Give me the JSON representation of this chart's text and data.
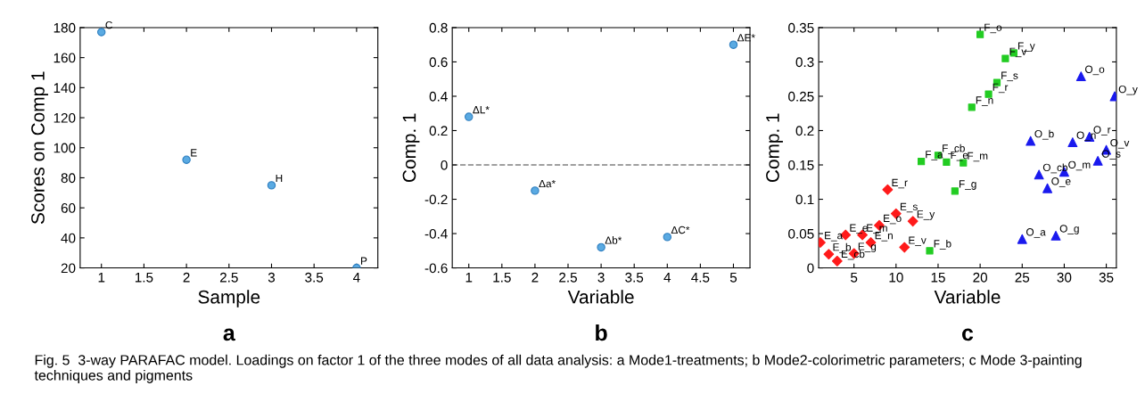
{
  "chart_data": [
    {
      "type": "scatter",
      "title": "a",
      "xlabel": "Sample",
      "ylabel": "Scores on Comp 1",
      "xlim": [
        0.75,
        4.25
      ],
      "xticks": [
        1,
        1.5,
        2,
        2.5,
        3,
        3.5,
        4
      ],
      "ylim": [
        20,
        180
      ],
      "yticks": [
        20,
        40,
        60,
        80,
        100,
        120,
        140,
        160,
        180
      ],
      "grid": false,
      "marker": "circle",
      "series": [
        {
          "color": "#5aaae2",
          "x": [
            1,
            2,
            3,
            4
          ],
          "values": [
            177,
            92,
            75,
            20
          ]
        }
      ],
      "annotations": [
        {
          "text": "C",
          "x": 1,
          "y": 177
        },
        {
          "text": "E",
          "x": 2,
          "y": 92
        },
        {
          "text": "H",
          "x": 3,
          "y": 75
        },
        {
          "text": "P",
          "x": 4,
          "y": 20
        },
        "Fig. 5  3-way PARAFAC model. Loadings on factor 1 of the three modes of all data analysis: a Mode1-treatments; b Mode2-colorimetric parameters; c Mode 3-painting techniques and pigments"
      ]
    },
    {
      "type": "scatter",
      "title": "b",
      "xlabel": "Variable",
      "ylabel": "Comp. 1",
      "xlim": [
        0.75,
        5.25
      ],
      "xticks": [
        1,
        1.5,
        2,
        2.5,
        3,
        3.5,
        4,
        4.5,
        5
      ],
      "ylim": [
        -0.6,
        0.8
      ],
      "yticks": [
        -0.6,
        -0.4,
        -0.2,
        0,
        0.2,
        0.4,
        0.6,
        0.8
      ],
      "grid": false,
      "marker": "circle",
      "series": [
        {
          "color": "#5aaae2",
          "x": [
            1,
            2,
            3,
            4,
            5
          ],
          "values": [
            0.28,
            -0.15,
            -0.48,
            -0.42,
            0.7
          ]
        }
      ],
      "ref_lines": [
        {
          "axis": "y",
          "value": 0,
          "color": "#808080",
          "line_style": "dashed"
        }
      ],
      "annotations": [
        {
          "text": "ΔL*",
          "x": 1,
          "y": 0.28
        },
        {
          "text": "Δa*",
          "x": 2,
          "y": -0.15
        },
        {
          "text": "Δb*",
          "x": 3,
          "y": -0.48
        },
        {
          "text": "ΔC*",
          "x": 4,
          "y": -0.42
        },
        {
          "text": "ΔE*",
          "x": 5,
          "y": 0.7
        }
      ]
    },
    {
      "type": "scatter",
      "title": "c",
      "xlabel": "Variable",
      "ylabel": "Comp. 1",
      "xlim": [
        0.8,
        36.2
      ],
      "xticks": [
        5,
        10,
        15,
        20,
        25,
        30,
        35
      ],
      "ylim": [
        0,
        0.35
      ],
      "yticks": [
        0,
        0.05,
        0.1,
        0.15,
        0.2,
        0.25,
        0.3,
        0.35
      ],
      "grid": false,
      "series": [
        {
          "color": "#ff1a1a",
          "marker": "diamond",
          "x": [
            1,
            2,
            3,
            4,
            5,
            6,
            7,
            8,
            9,
            10,
            11,
            12
          ],
          "values": [
            0.037,
            0.02,
            0.01,
            0.048,
            0.021,
            0.048,
            0.037,
            0.062,
            0.114,
            0.079,
            0.03,
            0.068
          ]
        },
        {
          "color": "#22cc22",
          "marker": "square",
          "x": [
            13,
            14,
            15,
            16,
            17,
            18,
            19,
            20,
            21,
            22,
            23,
            24
          ],
          "values": [
            0.155,
            0.025,
            0.164,
            0.154,
            0.112,
            0.153,
            0.234,
            0.34,
            0.253,
            0.27,
            0.305,
            0.313
          ]
        },
        {
          "color": "#1a1aee",
          "marker": "triangle",
          "x": [
            25,
            26,
            27,
            28,
            29,
            30,
            31,
            32,
            33,
            34,
            35,
            36
          ],
          "values": [
            0.042,
            0.185,
            0.136,
            0.116,
            0.047,
            0.14,
            0.183,
            0.279,
            0.191,
            0.156,
            0.172,
            0.25
          ]
        }
      ],
      "annotations": [
        {
          "text": "E_a",
          "x": 1,
          "y": 0.037
        },
        {
          "text": "E_b",
          "x": 2,
          "y": 0.02
        },
        {
          "text": "E_cb",
          "x": 3,
          "y": 0.01
        },
        {
          "text": "E_e",
          "x": 4,
          "y": 0.048
        },
        {
          "text": "E_g",
          "x": 5,
          "y": 0.021
        },
        {
          "text": "E_m",
          "x": 6,
          "y": 0.048
        },
        {
          "text": "E_n",
          "x": 7,
          "y": 0.037
        },
        {
          "text": "E_o",
          "x": 8,
          "y": 0.062
        },
        {
          "text": "E_r",
          "x": 9,
          "y": 0.114
        },
        {
          "text": "E_s",
          "x": 10,
          "y": 0.079
        },
        {
          "text": "E_v",
          "x": 11,
          "y": 0.03
        },
        {
          "text": "E_y",
          "x": 12,
          "y": 0.068
        },
        {
          "text": "F_a",
          "x": 13,
          "y": 0.155
        },
        {
          "text": "F_b",
          "x": 14,
          "y": 0.025
        },
        {
          "text": "F_cb",
          "x": 15,
          "y": 0.164
        },
        {
          "text": "F_e",
          "x": 16,
          "y": 0.154
        },
        {
          "text": "F_g",
          "x": 17,
          "y": 0.112
        },
        {
          "text": "F_m",
          "x": 18,
          "y": 0.153
        },
        {
          "text": "F_n",
          "x": 19,
          "y": 0.234
        },
        {
          "text": "F_o",
          "x": 20,
          "y": 0.34
        },
        {
          "text": "F_r",
          "x": 21,
          "y": 0.253
        },
        {
          "text": "F_s",
          "x": 22,
          "y": 0.27
        },
        {
          "text": "F_v",
          "x": 23,
          "y": 0.305
        },
        {
          "text": "F_y",
          "x": 24,
          "y": 0.313
        },
        {
          "text": "O_a",
          "x": 25,
          "y": 0.042
        },
        {
          "text": "O_b",
          "x": 26,
          "y": 0.185
        },
        {
          "text": "O_cb",
          "x": 27,
          "y": 0.136
        },
        {
          "text": "O_e",
          "x": 28,
          "y": 0.116
        },
        {
          "text": "O_g",
          "x": 29,
          "y": 0.047
        },
        {
          "text": "O_m",
          "x": 30,
          "y": 0.14
        },
        {
          "text": "O_n",
          "x": 31,
          "y": 0.183
        },
        {
          "text": "O_o",
          "x": 32,
          "y": 0.279
        },
        {
          "text": "O_r",
          "x": 33,
          "y": 0.191
        },
        {
          "text": "O_s",
          "x": 34,
          "y": 0.156
        },
        {
          "text": "O_v",
          "x": 35,
          "y": 0.172
        },
        {
          "text": "O_y",
          "x": 36,
          "y": 0.25
        }
      ]
    }
  ]
}
